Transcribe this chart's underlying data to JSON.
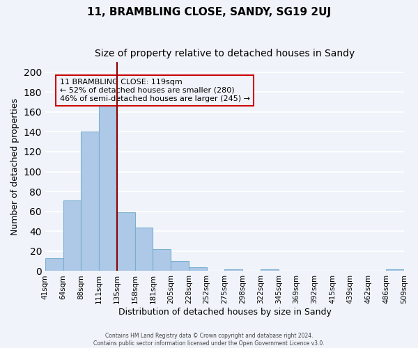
{
  "title": "11, BRAMBLING CLOSE, SANDY, SG19 2UJ",
  "subtitle": "Size of property relative to detached houses in Sandy",
  "xlabel": "Distribution of detached houses by size in Sandy",
  "ylabel": "Number of detached properties",
  "footer_line1": "Contains HM Land Registry data © Crown copyright and database right 2024.",
  "footer_line2": "Contains public sector information licensed under the Open Government Licence v3.0.",
  "bin_edge_labels": [
    "41sqm",
    "64sqm",
    "88sqm",
    "111sqm",
    "135sqm",
    "158sqm",
    "181sqm",
    "205sqm",
    "228sqm",
    "252sqm",
    "275sqm",
    "298sqm",
    "322sqm",
    "345sqm",
    "369sqm",
    "392sqm",
    "415sqm",
    "439sqm",
    "462sqm",
    "486sqm",
    "509sqm"
  ],
  "bar_values": [
    13,
    71,
    140,
    167,
    59,
    44,
    22,
    10,
    4,
    0,
    2,
    0,
    2,
    0,
    0,
    0,
    0,
    0,
    0,
    2
  ],
  "bar_color": "#aec9e8",
  "bar_edgecolor": "#7aaed0",
  "property_line_value": 119,
  "property_line_bin_index": 3,
  "property_line_color": "#8b0000",
  "annotation_title": "11 BRAMBLING CLOSE: 119sqm",
  "annotation_line1": "← 52% of detached houses are smaller (280)",
  "annotation_line2": "46% of semi-detached houses are larger (245) →",
  "annotation_box_edgecolor": "#cc0000",
  "ylim": [
    0,
    210
  ],
  "yticks": [
    0,
    20,
    40,
    60,
    80,
    100,
    120,
    140,
    160,
    180,
    200
  ],
  "background_color": "#f0f4fa",
  "grid_color": "#ffffff",
  "title_fontsize": 11,
  "subtitle_fontsize": 10,
  "axis_label_fontsize": 9,
  "tick_fontsize": 7.5
}
